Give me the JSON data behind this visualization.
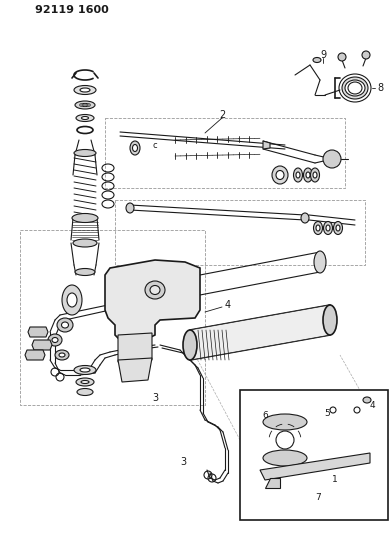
{
  "title_code": "92119 1600",
  "bg_color": "#ffffff",
  "line_color": "#1a1a1a",
  "fig_width": 3.92,
  "fig_height": 5.33,
  "dpi": 100
}
